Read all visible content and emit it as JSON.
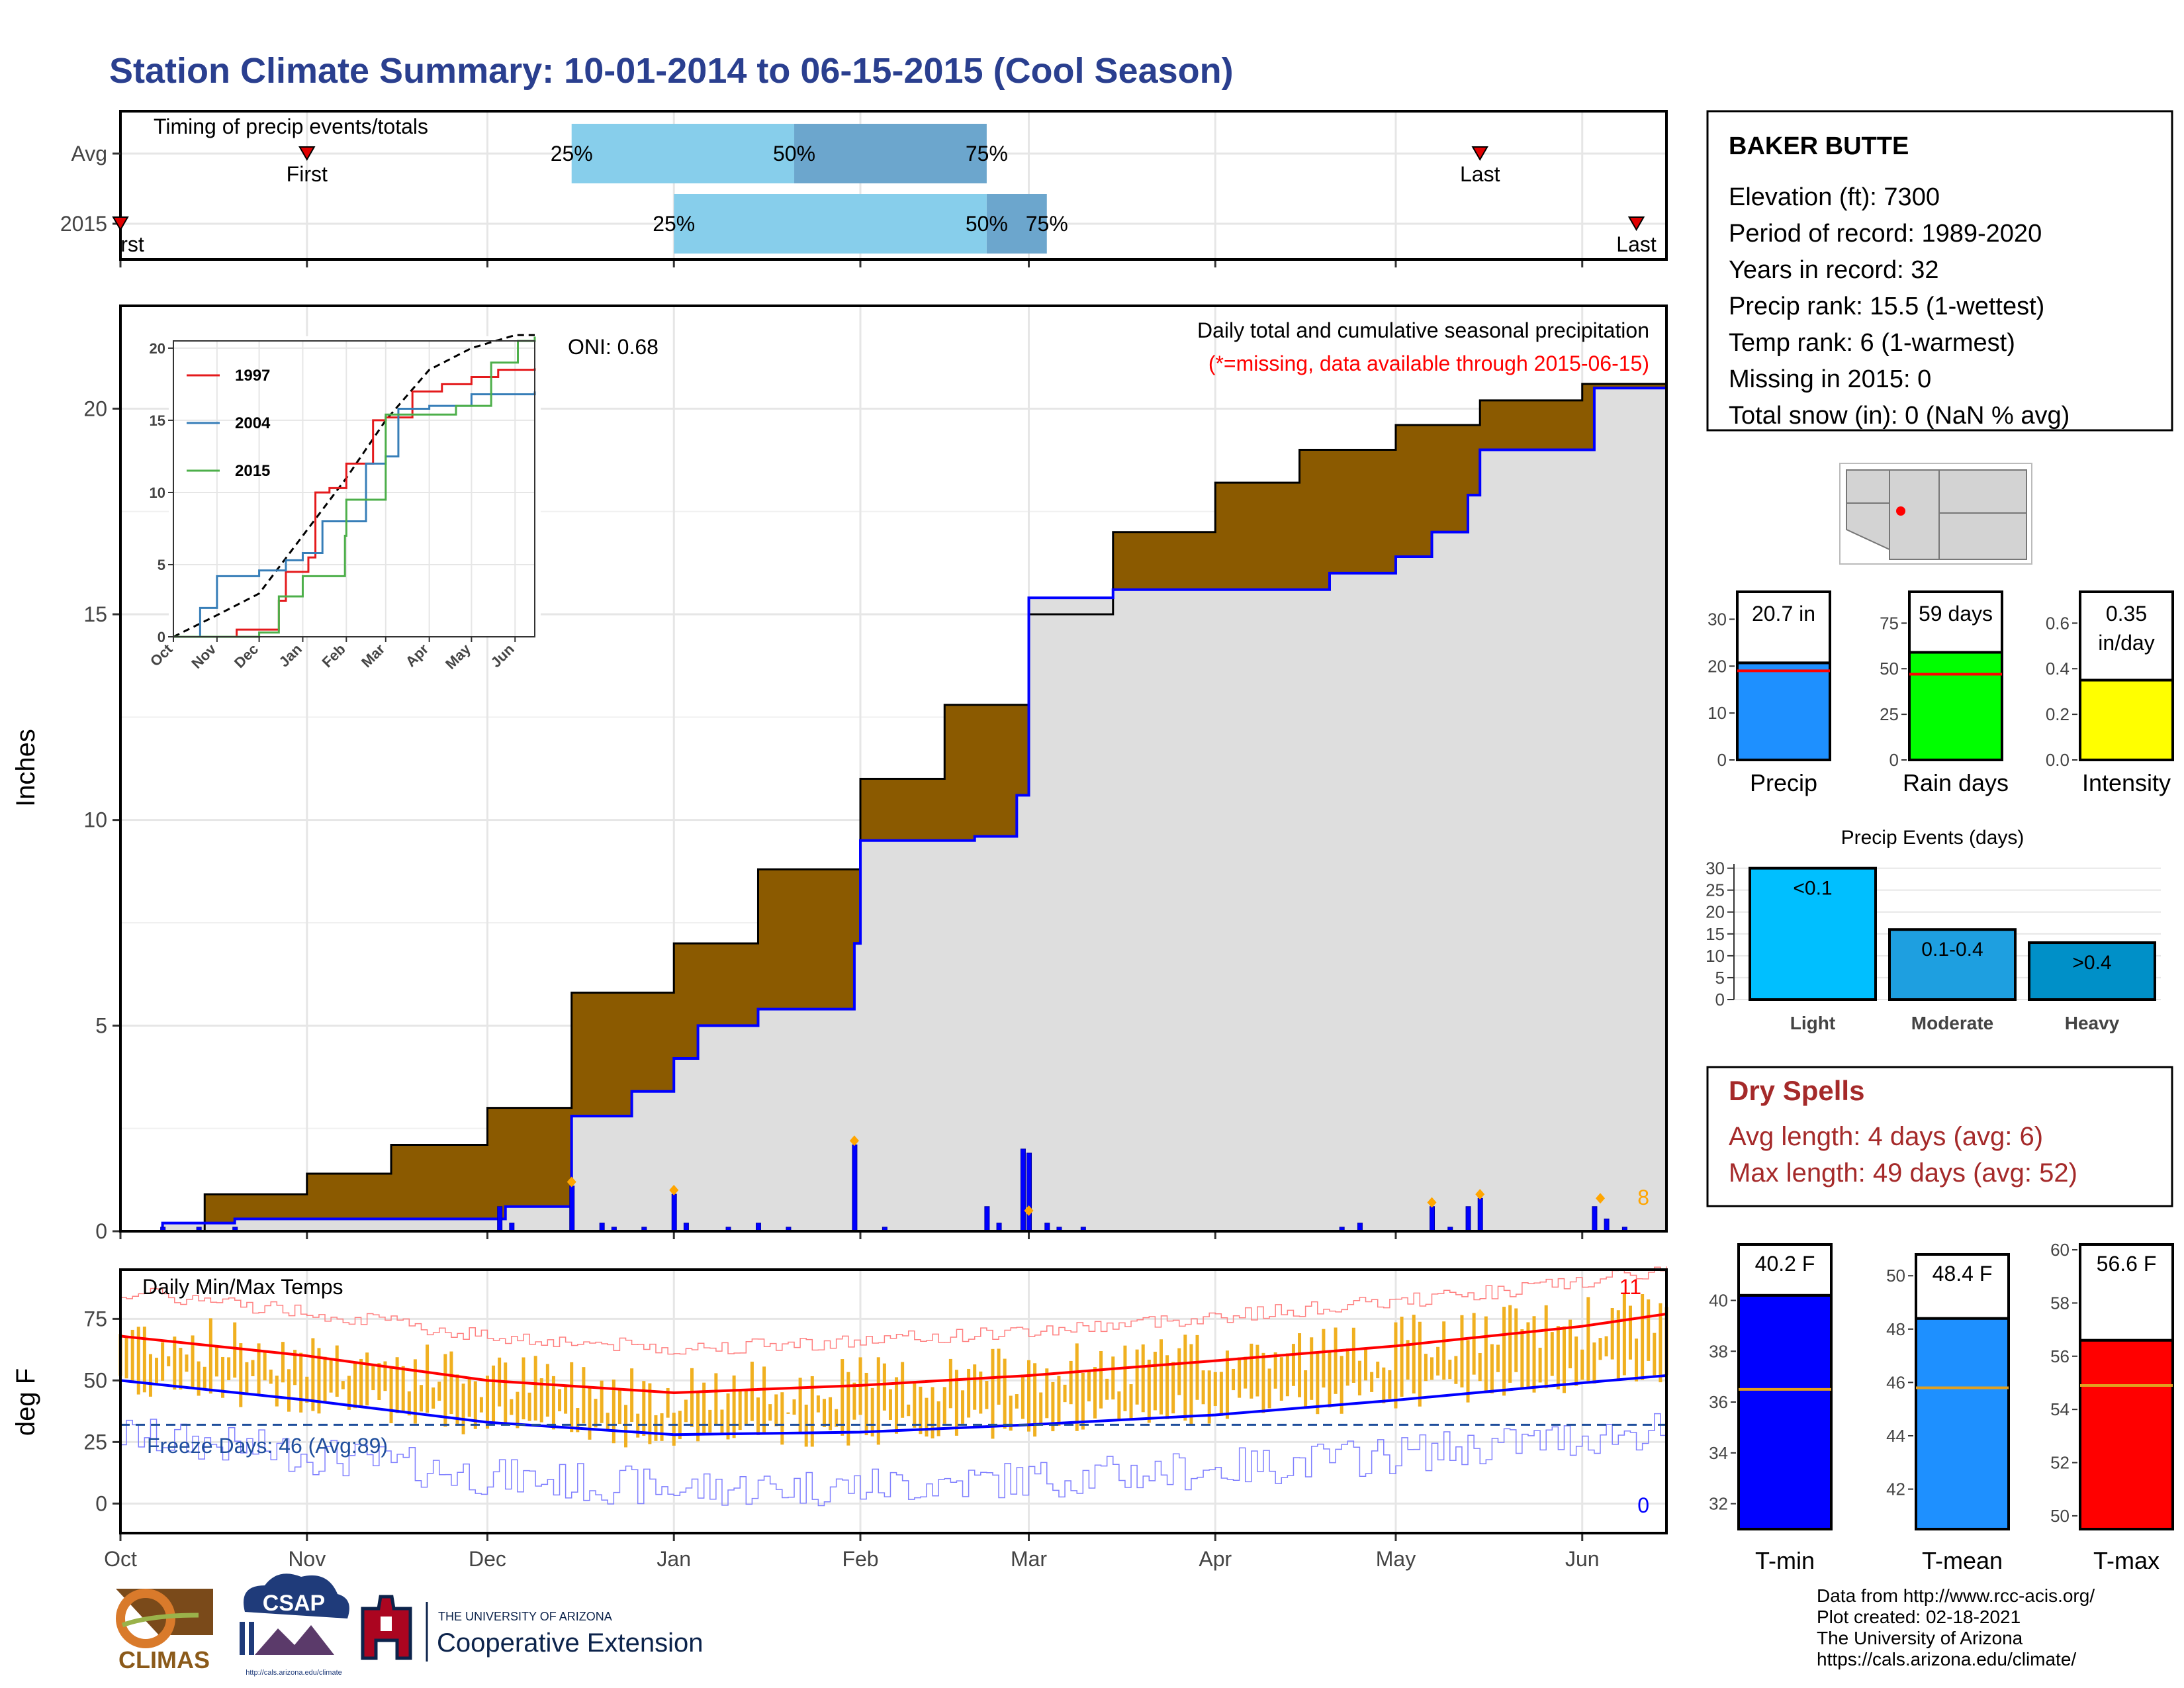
{
  "title": "Station Climate Summary: 10-01-2014 to 06-15-2015 (Cool Season)",
  "colors": {
    "title": "#2a3f8f",
    "brown": "#8b5a00",
    "fill_grey": "#dedede",
    "blue": "#0000ff",
    "red": "#ff0000",
    "orange": "#ffa500",
    "light_blue": "#87ceeb",
    "mid_blue": "#6ca6cd",
    "dry_red": "#a52a2a"
  },
  "timing": {
    "title": "Timing of precip events/totals",
    "rows": [
      {
        "label": "Avg",
        "first": "2014-11-01",
        "last": "2015-05-15",
        "p25": "2014-12-15",
        "p50": "2015-01-21",
        "p75": "2015-02-22",
        "first_label": "First",
        "last_label": "Last"
      },
      {
        "label": "2015",
        "first": "2014-10-01",
        "last": "2015-06-10",
        "p25": "2015-01-01",
        "p50": "2015-02-22",
        "p75": "2015-03-04",
        "first_label": "rst",
        "last_label": "Last"
      }
    ],
    "pct_labels": [
      "25%",
      "50%",
      "75%"
    ]
  },
  "station": {
    "name": "BAKER BUTTE",
    "lines": [
      "Elevation (ft): 7300",
      "Period of record: 1989-2020",
      "Years in record: 32",
      "Precip rank: 15.5 (1-wettest)",
      "Temp rank: 6 (1-warmest)",
      "Missing in 2015: 0",
      "Total snow (in): 0 (NaN % avg)"
    ]
  },
  "main_panel": {
    "ylabel": "Inches",
    "note1": "Daily total and cumulative seasonal precipitation",
    "note2": "(*=missing, data available through 2015-06-15)",
    "oni": "ONI: 0.68",
    "count_label": "8",
    "month_ticks": [
      "Oct",
      "Nov",
      "Dec",
      "Jan",
      "Feb",
      "Mar",
      "Apr",
      "May",
      "Jun"
    ],
    "yticks": [
      0,
      5,
      10,
      15,
      20
    ]
  },
  "inset": {
    "legend": [
      "1997",
      "2004",
      "2015"
    ],
    "xticks": [
      "Oct",
      "Nov",
      "Dec",
      "Jan",
      "Feb",
      "Mar",
      "Apr",
      "May",
      "Jun"
    ],
    "yticks": [
      0,
      5,
      10,
      15,
      20
    ]
  },
  "temp_panel": {
    "title": "Daily Min/Max Temps",
    "ylabel": "deg F",
    "freeze": "Freeze Days: 46 (Avg:89)",
    "count_max": "11",
    "count_min": "0",
    "yticks": [
      0,
      25,
      50,
      75
    ]
  },
  "mini_bars": [
    {
      "label": "Precip",
      "value_text": "20.7 in",
      "value": 20.7,
      "avg": 19.0,
      "ymax": 35,
      "ticks": [
        0,
        10,
        20,
        30
      ],
      "color": "#1e90ff"
    },
    {
      "label": "Rain days",
      "value_text": "59 days",
      "value": 59,
      "avg": 47,
      "ymax": 90,
      "ticks": [
        0,
        25,
        50,
        75
      ],
      "color": "#00ff00"
    },
    {
      "label": "Intensity",
      "value_text": "0.35 in/day",
      "value": 0.35,
      "avg": 0.4,
      "ymax": 0.72,
      "ticks": [
        "0.0",
        "0.2",
        "0.4",
        "0.6"
      ],
      "color": "#ffff00"
    }
  ],
  "precip_events": {
    "title": "Precip Events (days)",
    "categories": [
      "Light",
      "Moderate",
      "Heavy"
    ],
    "bar_labels": [
      "<0.1",
      "0.1-0.4",
      ">0.4"
    ],
    "values": [
      30,
      16,
      13
    ],
    "ticks": [
      0,
      5,
      10,
      15,
      20,
      25,
      30
    ],
    "colors": [
      "#00bfff",
      "#1e9fe0",
      "#0090c8"
    ]
  },
  "dry_spells": {
    "title": "Dry Spells",
    "lines": [
      "Avg length: 4 days (avg: 6)",
      "Max length: 49 days (avg: 52)"
    ]
  },
  "temp_bars": [
    {
      "label": "T-min",
      "value_text": "40.2 F",
      "value": 40.2,
      "avg": 36.5,
      "ymin": 31,
      "ymax": 42.2,
      "ticks": [
        32,
        34,
        36,
        38,
        40
      ],
      "color": "#0000ff"
    },
    {
      "label": "T-mean",
      "value_text": "48.4 F",
      "value": 48.4,
      "avg": 45.8,
      "ymin": 40.5,
      "ymax": 50.8,
      "ticks": [
        42,
        44,
        46,
        48,
        50
      ],
      "color": "#1e90ff"
    },
    {
      "label": "T-max",
      "value_text": "56.6 F",
      "value": 56.6,
      "avg": 54.9,
      "ymin": 49.5,
      "ymax": 60.2,
      "ticks": [
        50,
        52,
        54,
        56,
        58,
        60
      ],
      "color": "#ff0000"
    }
  ],
  "footer": {
    "lines": [
      "Data from http://www.rcc-acis.org/",
      "Plot created: 02-18-2021",
      "The University of Arizona",
      "https://cals.arizona.edu/climate/"
    ],
    "climas": "CLIMAS",
    "csap": "CSAP",
    "csap_url": "http://cals.arizona.edu/climate",
    "ua_top": "THE UNIVERSITY OF ARIZONA",
    "ua_bottom": "Cooperative Extension"
  },
  "chart_data": [
    {
      "type": "line",
      "title": "Daily total and cumulative seasonal precipitation",
      "ylabel": "Inches",
      "ylim": [
        0,
        22.5
      ],
      "x_range": [
        "2014-10-01",
        "2015-06-15"
      ],
      "series": [
        {
          "name": "Avg cumulative",
          "points": [
            [
              "2014-10-01",
              0
            ],
            [
              "2014-10-15",
              0.9
            ],
            [
              "2014-11-01",
              1.4
            ],
            [
              "2014-11-15",
              2.1
            ],
            [
              "2014-12-01",
              3.0
            ],
            [
              "2014-12-15",
              5.8
            ],
            [
              "2015-01-01",
              7.0
            ],
            [
              "2015-01-15",
              8.8
            ],
            [
              "2015-02-01",
              11.0
            ],
            [
              "2015-02-15",
              12.8
            ],
            [
              "2015-03-01",
              15.0
            ],
            [
              "2015-03-15",
              17.0
            ],
            [
              "2015-04-01",
              18.2
            ],
            [
              "2015-04-15",
              19.0
            ],
            [
              "2015-05-01",
              19.6
            ],
            [
              "2015-05-15",
              20.2
            ],
            [
              "2015-06-01",
              20.6
            ],
            [
              "2015-06-15",
              20.8
            ]
          ]
        },
        {
          "name": "2015 cumulative",
          "points": [
            [
              "2014-10-01",
              0
            ],
            [
              "2014-10-08",
              0.2
            ],
            [
              "2014-10-20",
              0.3
            ],
            [
              "2014-12-01",
              0.3
            ],
            [
              "2014-12-04",
              0.6
            ],
            [
              "2014-12-14",
              0.6
            ],
            [
              "2014-12-15",
              2.8
            ],
            [
              "2014-12-25",
              3.4
            ],
            [
              "2015-01-01",
              4.2
            ],
            [
              "2015-01-05",
              5.0
            ],
            [
              "2015-01-15",
              5.4
            ],
            [
              "2015-01-31",
              7.0
            ],
            [
              "2015-02-01",
              9.5
            ],
            [
              "2015-02-20",
              9.6
            ],
            [
              "2015-02-27",
              10.6
            ],
            [
              "2015-03-01",
              15.4
            ],
            [
              "2015-03-15",
              15.6
            ],
            [
              "2015-04-20",
              16.0
            ],
            [
              "2015-05-01",
              16.4
            ],
            [
              "2015-05-07",
              17.0
            ],
            [
              "2015-05-13",
              17.9
            ],
            [
              "2015-05-15",
              19.0
            ],
            [
              "2015-06-01",
              19.0
            ],
            [
              "2015-06-03",
              20.5
            ],
            [
              "2015-06-15",
              20.8
            ]
          ]
        }
      ],
      "daily_bars": [
        [
          "2014-10-08",
          0.1
        ],
        [
          "2014-10-14",
          0.1
        ],
        [
          "2014-10-20",
          0.1
        ],
        [
          "2014-12-03",
          0.6
        ],
        [
          "2014-12-05",
          0.2
        ],
        [
          "2014-12-15",
          1.1
        ],
        [
          "2014-12-20",
          0.2
        ],
        [
          "2014-12-22",
          0.1
        ],
        [
          "2014-12-27",
          0.1
        ],
        [
          "2015-01-01",
          0.9
        ],
        [
          "2015-01-03",
          0.2
        ],
        [
          "2015-01-10",
          0.1
        ],
        [
          "2015-01-15",
          0.2
        ],
        [
          "2015-01-20",
          0.1
        ],
        [
          "2015-01-31",
          2.1
        ],
        [
          "2015-02-05",
          0.1
        ],
        [
          "2015-02-22",
          0.6
        ],
        [
          "2015-02-24",
          0.2
        ],
        [
          "2015-02-28",
          2.0
        ],
        [
          "2015-03-01",
          1.9
        ],
        [
          "2015-03-04",
          0.2
        ],
        [
          "2015-03-06",
          0.1
        ],
        [
          "2015-03-10",
          0.1
        ],
        [
          "2015-04-22",
          0.1
        ],
        [
          "2015-04-25",
          0.2
        ],
        [
          "2015-05-07",
          0.6
        ],
        [
          "2015-05-10",
          0.1
        ],
        [
          "2015-05-13",
          0.6
        ],
        [
          "2015-05-15",
          0.8
        ],
        [
          "2015-06-03",
          0.6
        ],
        [
          "2015-06-05",
          0.3
        ],
        [
          "2015-06-08",
          0.1
        ]
      ],
      "markers": [
        [
          "2014-12-15",
          1.2
        ],
        [
          "2015-01-01",
          1.0
        ],
        [
          "2015-01-31",
          2.2
        ],
        [
          "2015-03-01",
          0.5
        ],
        [
          "2015-05-07",
          0.7
        ],
        [
          "2015-05-15",
          0.9
        ],
        [
          "2015-06-04",
          0.8
        ]
      ]
    },
    {
      "type": "line",
      "title": "Inset cumulative comparison",
      "ylim": [
        0,
        21
      ],
      "series": [
        {
          "name": "Avg",
          "style": "dashed",
          "points": [
            [
              "2014-10-01",
              0
            ],
            [
              "2014-11-01",
              1.5
            ],
            [
              "2014-12-01",
              3.0
            ],
            [
              "2015-01-01",
              7.0
            ],
            [
              "2015-02-01",
              11.0
            ],
            [
              "2015-03-01",
              15.0
            ],
            [
              "2015-04-01",
              18.5
            ],
            [
              "2015-05-01",
              20.0
            ],
            [
              "2015-06-01",
              20.9
            ],
            [
              "2015-06-15",
              20.9
            ]
          ]
        },
        {
          "name": "1997",
          "points": [
            [
              "2014-10-01",
              0
            ],
            [
              "2014-11-15",
              0.5
            ],
            [
              "2014-12-15",
              2.5
            ],
            [
              "2014-12-20",
              4.5
            ],
            [
              "2015-01-05",
              5.5
            ],
            [
              "2015-01-10",
              10.0
            ],
            [
              "2015-01-20",
              10.3
            ],
            [
              "2015-02-01",
              12.0
            ],
            [
              "2015-02-20",
              15.0
            ],
            [
              "2015-03-01",
              15.2
            ],
            [
              "2015-03-20",
              17.0
            ],
            [
              "2015-04-10",
              17.5
            ],
            [
              "2015-05-01",
              18.0
            ],
            [
              "2015-05-20",
              18.5
            ],
            [
              "2015-06-15",
              18.6
            ]
          ]
        },
        {
          "name": "2004",
          "points": [
            [
              "2014-10-01",
              0
            ],
            [
              "2014-10-20",
              2.0
            ],
            [
              "2014-11-01",
              4.2
            ],
            [
              "2014-12-01",
              4.6
            ],
            [
              "2014-12-20",
              5.3
            ],
            [
              "2015-01-01",
              5.8
            ],
            [
              "2015-01-15",
              8.0
            ],
            [
              "2015-02-15",
              12.0
            ],
            [
              "2015-03-01",
              12.5
            ],
            [
              "2015-03-10",
              15.8
            ],
            [
              "2015-04-01",
              16.0
            ],
            [
              "2015-05-01",
              16.8
            ],
            [
              "2015-06-15",
              17.0
            ]
          ]
        },
        {
          "name": "2015",
          "points": [
            [
              "2014-10-01",
              0
            ],
            [
              "2014-12-01",
              0.3
            ],
            [
              "2014-12-15",
              2.8
            ],
            [
              "2015-01-01",
              4.2
            ],
            [
              "2015-01-31",
              7.0
            ],
            [
              "2015-02-01",
              9.5
            ],
            [
              "2015-03-01",
              15.4
            ],
            [
              "2015-04-20",
              16.0
            ],
            [
              "2015-05-15",
              19.0
            ],
            [
              "2015-06-03",
              20.5
            ],
            [
              "2015-06-15",
              20.8
            ]
          ]
        }
      ]
    },
    {
      "type": "line",
      "title": "Daily Min/Max Temps",
      "ylabel": "deg F",
      "ylim": [
        -12,
        95
      ],
      "series": [
        {
          "name": "Avg max",
          "points": [
            [
              "2014-10-01",
              68
            ],
            [
              "2014-11-01",
              60
            ],
            [
              "2014-12-01",
              50
            ],
            [
              "2015-01-01",
              45
            ],
            [
              "2015-02-01",
              48
            ],
            [
              "2015-03-01",
              52
            ],
            [
              "2015-04-01",
              58
            ],
            [
              "2015-05-01",
              64
            ],
            [
              "2015-06-01",
              72
            ],
            [
              "2015-06-15",
              77
            ]
          ]
        },
        {
          "name": "Avg min",
          "points": [
            [
              "2014-10-01",
              50
            ],
            [
              "2014-11-01",
              42
            ],
            [
              "2014-12-01",
              33
            ],
            [
              "2015-01-01",
              28
            ],
            [
              "2015-02-01",
              29
            ],
            [
              "2015-03-01",
              32
            ],
            [
              "2015-04-01",
              36
            ],
            [
              "2015-05-01",
              42
            ],
            [
              "2015-06-01",
              49
            ],
            [
              "2015-06-15",
              52
            ]
          ]
        }
      ],
      "freeze_line": 32
    }
  ]
}
